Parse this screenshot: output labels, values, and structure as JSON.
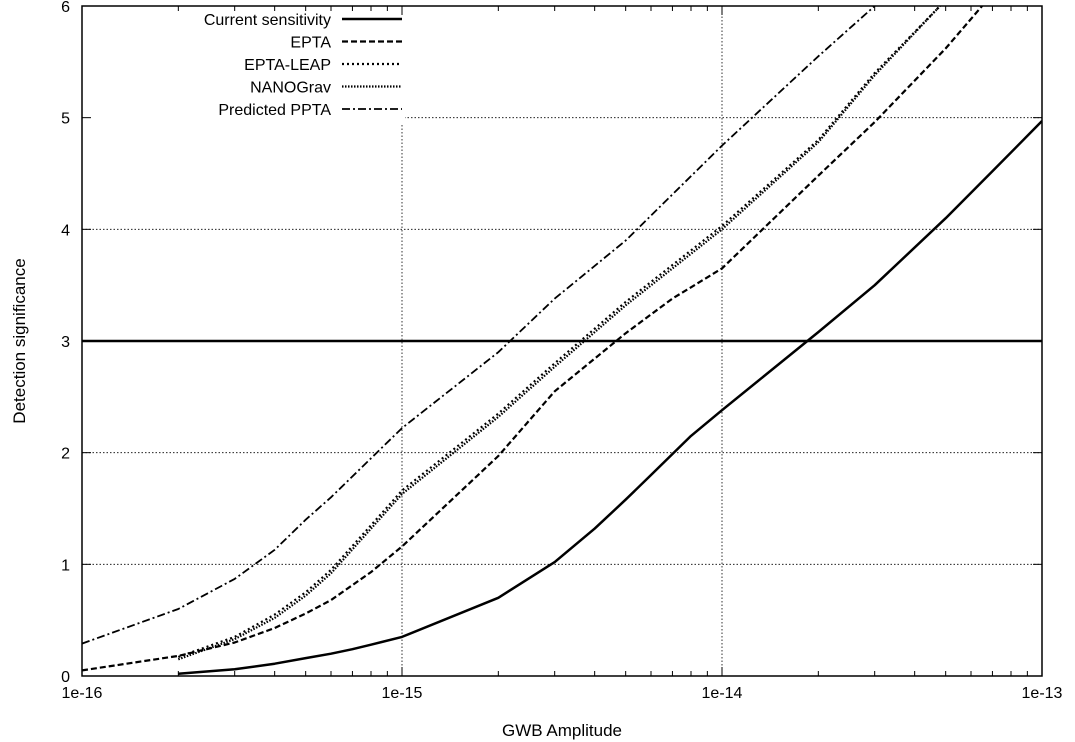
{
  "chart_data": {
    "type": "line",
    "title": "",
    "xlabel": "GWB Amplitude",
    "ylabel": "Detection significance",
    "xscale": "log",
    "xlim": [
      1e-16,
      1e-13
    ],
    "ylim": [
      0,
      6
    ],
    "x_ticks": [
      {
        "value": 1e-16,
        "label": "1e-16"
      },
      {
        "value": 1e-15,
        "label": "1e-15"
      },
      {
        "value": 1e-14,
        "label": "1e-14"
      },
      {
        "value": 1e-13,
        "label": "1e-13"
      }
    ],
    "y_ticks": [
      {
        "value": 0,
        "label": "0"
      },
      {
        "value": 1,
        "label": "1"
      },
      {
        "value": 2,
        "label": "2"
      },
      {
        "value": 3,
        "label": "3"
      },
      {
        "value": 4,
        "label": "4"
      },
      {
        "value": 5,
        "label": "5"
      },
      {
        "value": 6,
        "label": "6"
      }
    ],
    "grid": true,
    "legend_position": "top-left",
    "reference_line": {
      "y": 3
    },
    "series": [
      {
        "name": "Current sensitivity",
        "style": "solid",
        "x": [
          2e-16,
          3e-16,
          4e-16,
          5e-16,
          6e-16,
          7e-16,
          8e-16,
          1e-15,
          2e-15,
          3e-15,
          4e-15,
          5e-15,
          6e-15,
          8e-15,
          1e-14,
          2e-14,
          3e-14,
          5e-14,
          7e-14,
          1e-13
        ],
        "y": [
          0.02,
          0.06,
          0.11,
          0.16,
          0.2,
          0.24,
          0.28,
          0.35,
          0.7,
          1.02,
          1.32,
          1.58,
          1.8,
          2.15,
          2.38,
          3.08,
          3.5,
          4.1,
          4.52,
          4.97
        ]
      },
      {
        "name": "EPTA",
        "style": "dashed",
        "x": [
          1e-16,
          2e-16,
          3e-16,
          4e-16,
          5e-16,
          6e-16,
          8e-16,
          1e-15,
          2e-15,
          3e-15,
          5e-15,
          7e-15,
          1e-14,
          2e-14,
          3e-14,
          5e-14,
          6.5e-14
        ],
        "y": [
          0.05,
          0.18,
          0.3,
          0.43,
          0.56,
          0.68,
          0.93,
          1.16,
          1.97,
          2.55,
          3.07,
          3.38,
          3.65,
          4.48,
          4.96,
          5.62,
          6.0
        ]
      },
      {
        "name": "EPTA-LEAP",
        "style": "dotted",
        "x": [
          2e-16,
          3e-16,
          4e-16,
          5e-16,
          6e-16,
          8e-16,
          1e-15,
          2e-15,
          3e-15,
          5e-15,
          1e-14,
          2e-14,
          3e-14,
          4.8e-14
        ],
        "y": [
          0.17,
          0.35,
          0.55,
          0.75,
          0.95,
          1.35,
          1.66,
          2.35,
          2.8,
          3.35,
          4.03,
          4.8,
          5.4,
          6.0
        ]
      },
      {
        "name": "NANOGrav",
        "style": "densely-dotted",
        "x": [
          2e-16,
          3e-16,
          4e-16,
          5e-16,
          6e-16,
          8e-16,
          1e-15,
          2e-15,
          3e-15,
          5e-15,
          1e-14,
          2e-14,
          3e-14,
          4.8e-14
        ],
        "y": [
          0.15,
          0.33,
          0.52,
          0.72,
          0.92,
          1.32,
          1.63,
          2.32,
          2.77,
          3.32,
          4.0,
          4.78,
          5.38,
          6.0
        ]
      },
      {
        "name": "Predicted PPTA",
        "style": "dash-dot",
        "x": [
          1e-16,
          2e-16,
          3e-16,
          4e-16,
          5e-16,
          6e-16,
          8e-16,
          1e-15,
          2e-15,
          3e-15,
          5e-15,
          1e-14,
          2e-14,
          3e-14
        ],
        "y": [
          0.29,
          0.6,
          0.87,
          1.13,
          1.4,
          1.6,
          1.95,
          2.22,
          2.9,
          3.38,
          3.9,
          4.75,
          5.55,
          6.0
        ]
      }
    ]
  }
}
